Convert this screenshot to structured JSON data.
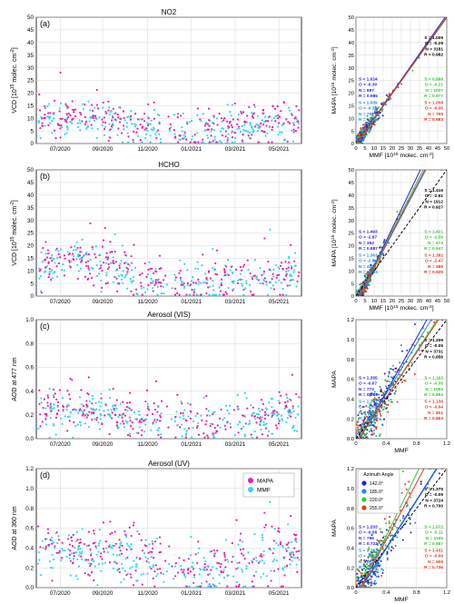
{
  "figure": {
    "legend_main": {
      "items": [
        {
          "label": "MAPA",
          "color": "#e81fb2"
        },
        {
          "label": "MMF",
          "color": "#33d6f2"
        }
      ]
    },
    "legend_azimuth": {
      "title": "Azimuth Angle",
      "items": [
        {
          "label": "142.0°",
          "color": "#2424d8"
        },
        {
          "label": "185.0°",
          "color": "#1f8ed1"
        },
        {
          "label": "220.0°",
          "color": "#3cc43c"
        },
        {
          "label": "255.0°",
          "color": "#e0392b"
        }
      ]
    }
  },
  "colors": {
    "mapa": "#e81fb2",
    "mmf": "#33d6f2",
    "black": "#000000",
    "blue": "#2424d8",
    "cyan": "#1f8ed1",
    "green": "#3cc43c",
    "red": "#e0392b"
  },
  "chart_data": [
    {
      "type": "scatter",
      "panel_letter": "(a)",
      "title": "NO2",
      "ylabel": "VCD [10^15 molec. cm^-2]",
      "ylim": [
        0,
        50
      ],
      "yticks": [
        0,
        5,
        10,
        15,
        20,
        25,
        30,
        35,
        40,
        45,
        50
      ],
      "xticks": [
        "07/2020",
        "09/2020",
        "11/2020",
        "01/2021",
        "03/2021",
        "05/2021"
      ],
      "series": [
        {
          "name": "MAPA",
          "color": "#e81fb2"
        },
        {
          "name": "MMF",
          "color": "#33d6f2"
        }
      ],
      "typical_level": 7,
      "spread": 3.5
    },
    {
      "type": "scatter",
      "panel_letter": "(a)",
      "xlabel": "MMF [10^15 molec. cm^-2]",
      "ylabel": "MAPA [10^15 molec. cm^-2]",
      "xlim": [
        0,
        50
      ],
      "ylim": [
        0,
        50
      ],
      "xticks": [
        0,
        5,
        10,
        15,
        20,
        25,
        30,
        35,
        40,
        45,
        50
      ],
      "yticks": [
        0,
        5,
        10,
        15,
        20,
        25,
        30,
        35,
        40,
        45,
        50
      ],
      "stats": [
        {
          "color": "#000000",
          "lines": [
            "S = 1.009",
            "O = -0.29",
            "N = 3181",
            "R = 0.982"
          ]
        },
        {
          "color": "#2424d8",
          "lines": [
            "S = 1.024",
            "O = -0.30",
            "N = 887",
            "R = 0.985"
          ]
        },
        {
          "color": "#3cc43c",
          "lines": [
            "S = 0.999",
            "O = -0.21",
            "N = 1037",
            "R = 0.977"
          ]
        },
        {
          "color": "#1f8ed1",
          "lines": [
            "S = 1.009",
            "O = -0.34",
            "N = 752",
            "R = 0.985"
          ]
        },
        {
          "color": "#e0392b",
          "lines": [
            "S = 1.008",
            "O = -0.35",
            "N = 765",
            "R = 0.983"
          ]
        }
      ],
      "fits": [
        {
          "color": "#2424d8",
          "slope": 1.024,
          "offset": -0.3
        },
        {
          "color": "#1f8ed1",
          "slope": 1.009,
          "offset": -0.34
        },
        {
          "color": "#3cc43c",
          "slope": 0.999,
          "offset": -0.21
        },
        {
          "color": "#e0392b",
          "slope": 1.008,
          "offset": -0.35
        }
      ]
    },
    {
      "type": "scatter",
      "panel_letter": "(b)",
      "title": "HCHO",
      "ylabel": "VCD [10^15 molec. cm^-2]",
      "ylim": [
        0,
        50
      ],
      "yticks": [
        0,
        5,
        10,
        15,
        20,
        25,
        30,
        35,
        40,
        45,
        50
      ],
      "xticks": [
        "07/2020",
        "09/2020",
        "11/2020",
        "01/2021",
        "03/2021",
        "05/2021"
      ],
      "series": [
        {
          "name": "MAPA",
          "color": "#e81fb2"
        },
        {
          "name": "MMF",
          "color": "#33d6f2"
        }
      ],
      "typical_level": 8,
      "spread": 4
    },
    {
      "type": "scatter",
      "panel_letter": "(b)",
      "xlabel": "MMF [10^15 molec. cm^-2]",
      "ylabel": "MAPA [10^15 molec. cm^-2]",
      "xlim": [
        0,
        50
      ],
      "ylim": [
        0,
        50
      ],
      "xticks": [
        0,
        5,
        10,
        15,
        20,
        25,
        30,
        35,
        40,
        45,
        50
      ],
      "yticks": [
        0,
        5,
        10,
        15,
        20,
        25,
        30,
        35,
        40,
        45,
        50
      ],
      "stats": [
        {
          "color": "#000000",
          "lines": [
            "S = 1.416",
            "O = -2.61",
            "N = 1912",
            "R = 0.927"
          ]
        },
        {
          "color": "#2424d8",
          "lines": [
            "S = 1.493",
            "O = -2.97",
            "N = 352",
            "R = 0.887"
          ]
        },
        {
          "color": "#3cc43c",
          "lines": [
            "S = 1.421",
            "O = -2.59",
            "N = 674",
            "R = 0.947"
          ]
        },
        {
          "color": "#1f8ed1",
          "lines": [
            "S = 1.363",
            "O = -2.50",
            "N = 488",
            "R = 0.924"
          ]
        },
        {
          "color": "#e0392b",
          "lines": [
            "S = 1.382",
            "O = -2.47",
            "N = 488",
            "R = 0.925"
          ]
        }
      ],
      "fits": [
        {
          "color": "#2424d8",
          "slope": 1.493,
          "offset": -2.97
        },
        {
          "color": "#1f8ed1",
          "slope": 1.363,
          "offset": -2.5
        },
        {
          "color": "#3cc43c",
          "slope": 1.421,
          "offset": -2.59
        },
        {
          "color": "#e0392b",
          "slope": 1.382,
          "offset": -2.47
        }
      ]
    },
    {
      "type": "scatter",
      "panel_letter": "(c)",
      "title": "Aerosol (VIS)",
      "ylabel": "AOD at 477 nm",
      "ylim": [
        0,
        1.0
      ],
      "yticks": [
        0,
        0.2,
        0.4,
        0.6,
        0.8,
        1.0
      ],
      "xticks": [
        "07/2020",
        "09/2020",
        "11/2020",
        "01/2021",
        "03/2021",
        "05/2021"
      ],
      "series": [
        {
          "name": "MAPA",
          "color": "#e81fb2"
        },
        {
          "name": "MMF",
          "color": "#33d6f2"
        }
      ],
      "typical_level": 0.18,
      "spread": 0.08
    },
    {
      "type": "scatter",
      "panel_letter": "(c)",
      "xlabel": "MMF",
      "ylabel": "MAPA",
      "xlim": [
        0,
        1.2
      ],
      "ylim": [
        0,
        1.2
      ],
      "xticks": [
        0,
        0.4,
        0.8,
        1.2
      ],
      "yticks": [
        0,
        0.2,
        0.4,
        0.6,
        0.8,
        1.0,
        1.2
      ],
      "stats": [
        {
          "color": "#000000",
          "lines": [
            "S = 1.209",
            "O = -0.05",
            "N = 3731",
            "R = 0.856"
          ]
        },
        {
          "color": "#2424d8",
          "lines": [
            "S = 1.355",
            "O = -0.07",
            "N = 773",
            "R = 0.806"
          ]
        },
        {
          "color": "#3cc43c",
          "lines": [
            "S = 1.163",
            "O = -0.05",
            "N = 1094",
            "R = 0.894"
          ]
        },
        {
          "color": "#1f8ed1",
          "lines": [
            "S = 1.257",
            "O = -0.05",
            "N = 791",
            "R = 0.868"
          ]
        },
        {
          "color": "#e0392b",
          "lines": [
            "S = 1.136",
            "O = -0.04",
            "N = 801",
            "R = 0.863"
          ]
        }
      ],
      "fits": [
        {
          "color": "#2424d8",
          "slope": 1.355,
          "offset": -0.07
        },
        {
          "color": "#1f8ed1",
          "slope": 1.257,
          "offset": -0.05
        },
        {
          "color": "#3cc43c",
          "slope": 1.163,
          "offset": -0.05
        },
        {
          "color": "#e0392b",
          "slope": 1.136,
          "offset": -0.04
        }
      ]
    },
    {
      "type": "scatter",
      "panel_letter": "(d)",
      "title": "Aerosol (UV)",
      "ylabel": "AOD at 360 nm",
      "ylim": [
        0,
        1.2
      ],
      "yticks": [
        0,
        0.2,
        0.4,
        0.6,
        0.8,
        1.0,
        1.2
      ],
      "xticks": [
        "07/2020",
        "09/2020",
        "11/2020",
        "01/2021",
        "03/2021",
        "05/2021"
      ],
      "series": [
        {
          "name": "MAPA",
          "color": "#e81fb2"
        },
        {
          "name": "MMF",
          "color": "#33d6f2"
        }
      ],
      "typical_level": 0.28,
      "spread": 0.12
    },
    {
      "type": "scatter",
      "panel_letter": "(d)",
      "xlabel": "MMF",
      "ylabel": "MAPA",
      "xlim": [
        0,
        1.2
      ],
      "ylim": [
        0,
        1.2
      ],
      "xticks": [
        0,
        0.4,
        0.8,
        1.2
      ],
      "yticks": [
        0,
        0.2,
        0.4,
        0.6,
        0.8,
        1.0,
        1.2
      ],
      "stats": [
        {
          "color": "#000000",
          "lines": [
            "S = 1.375",
            "O = -0.09",
            "N = 3724",
            "R = 0.700"
          ]
        },
        {
          "color": "#2424d8",
          "lines": [
            "S = 1.203",
            "O = -0.08",
            "N = 796",
            "R = 0.722"
          ]
        },
        {
          "color": "#3cc43c",
          "lines": [
            "S = 1.572",
            "O = -0.11",
            "N = 1165",
            "R = 0.657"
          ]
        },
        {
          "color": "#1f8ed1",
          "lines": [
            "S = 1.203",
            "O = -0.09",
            "N = 674",
            "R = 0.714"
          ]
        },
        {
          "color": "#e0392b",
          "lines": [
            "S = 1.431",
            "O = -0.09",
            "N = 909",
            "R = 0.736"
          ]
        }
      ],
      "fits": [
        {
          "color": "#2424d8",
          "slope": 1.203,
          "offset": -0.08
        },
        {
          "color": "#1f8ed1",
          "slope": 1.203,
          "offset": -0.09
        },
        {
          "color": "#3cc43c",
          "slope": 1.572,
          "offset": -0.11
        },
        {
          "color": "#e0392b",
          "slope": 1.431,
          "offset": -0.09
        }
      ]
    }
  ]
}
